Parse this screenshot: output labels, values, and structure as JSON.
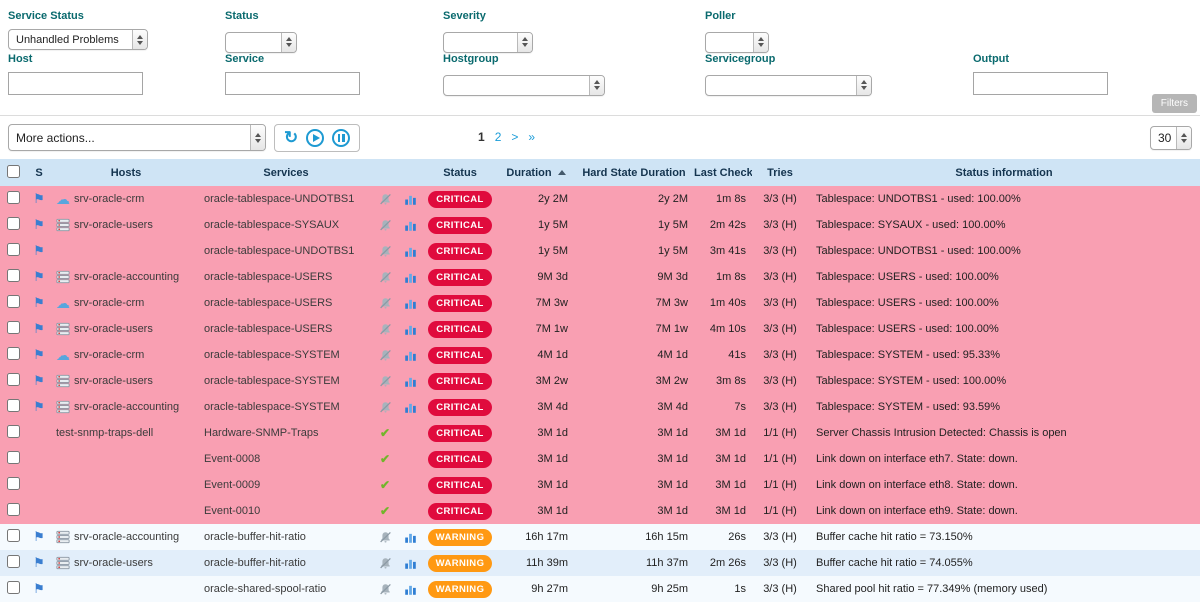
{
  "filters": {
    "row1": [
      {
        "label": "Service Status",
        "value": "Unhandled Problems"
      },
      {
        "label": "Status",
        "value": ""
      },
      {
        "label": "Severity",
        "value": ""
      },
      {
        "label": "Poller",
        "value": ""
      }
    ],
    "row2": [
      {
        "label": "Host",
        "value": ""
      },
      {
        "label": "Service",
        "value": ""
      },
      {
        "label": "Hostgroup",
        "value": ""
      },
      {
        "label": "Servicegroup",
        "value": ""
      },
      {
        "label": "Output",
        "value": ""
      }
    ],
    "filters_button": "Filters"
  },
  "toolbar": {
    "more_actions_value": "More actions...",
    "page_size_value": "30",
    "pagination": {
      "current": "1",
      "page2": "2",
      "next": ">",
      "last": "»"
    }
  },
  "table": {
    "headers": {
      "s": "S",
      "hosts": "Hosts",
      "services": "Services",
      "status": "Status",
      "duration": "Duration",
      "hard_state_duration": "Hard State Duration",
      "last_check": "Last Check",
      "tries": "Tries",
      "status_information": "Status information"
    },
    "rows": [
      {
        "checkbox": true,
        "flag": true,
        "host": "srv-oracle-crm",
        "host_icon": "cloud",
        "service": "oracle-tablespace-UNDOTBS1",
        "icons": [
          "bell-mute",
          "chart"
        ],
        "status": "CRITICAL",
        "duration": "2y 2M",
        "hard_state_duration": "2y 2M",
        "last_check": "1m 8s",
        "tries": "3/3 (H)",
        "info": "Tablespace: UNDOTBS1 - used: 100.00%",
        "row_class": "critical"
      },
      {
        "checkbox": true,
        "flag": true,
        "host": "srv-oracle-users",
        "host_icon": "server",
        "service": "oracle-tablespace-SYSAUX",
        "icons": [
          "bell-mute",
          "chart"
        ],
        "status": "CRITICAL",
        "duration": "1y 5M",
        "hard_state_duration": "1y 5M",
        "last_check": "2m 42s",
        "tries": "3/3 (H)",
        "info": "Tablespace: SYSAUX - used: 100.00%",
        "row_class": "critical"
      },
      {
        "checkbox": true,
        "flag": true,
        "host": "",
        "host_icon": "",
        "service": "oracle-tablespace-UNDOTBS1",
        "icons": [
          "bell-mute",
          "chart"
        ],
        "status": "CRITICAL",
        "duration": "1y 5M",
        "hard_state_duration": "1y 5M",
        "last_check": "3m 41s",
        "tries": "3/3 (H)",
        "info": "Tablespace: UNDOTBS1 - used: 100.00%",
        "row_class": "critical"
      },
      {
        "checkbox": true,
        "flag": true,
        "host": "srv-oracle-accounting",
        "host_icon": "server",
        "service": "oracle-tablespace-USERS",
        "icons": [
          "bell-mute",
          "chart"
        ],
        "status": "CRITICAL",
        "duration": "9M 3d",
        "hard_state_duration": "9M 3d",
        "last_check": "1m 8s",
        "tries": "3/3 (H)",
        "info": "Tablespace: USERS - used: 100.00%",
        "row_class": "critical"
      },
      {
        "checkbox": true,
        "flag": true,
        "host": "srv-oracle-crm",
        "host_icon": "cloud",
        "service": "oracle-tablespace-USERS",
        "icons": [
          "bell-mute",
          "chart"
        ],
        "status": "CRITICAL",
        "duration": "7M 3w",
        "hard_state_duration": "7M 3w",
        "last_check": "1m 40s",
        "tries": "3/3 (H)",
        "info": "Tablespace: USERS - used: 100.00%",
        "row_class": "critical"
      },
      {
        "checkbox": true,
        "flag": true,
        "host": "srv-oracle-users",
        "host_icon": "server",
        "service": "oracle-tablespace-USERS",
        "icons": [
          "bell-mute",
          "chart"
        ],
        "status": "CRITICAL",
        "duration": "7M 1w",
        "hard_state_duration": "7M 1w",
        "last_check": "4m 10s",
        "tries": "3/3 (H)",
        "info": "Tablespace: USERS - used: 100.00%",
        "row_class": "critical"
      },
      {
        "checkbox": true,
        "flag": true,
        "host": "srv-oracle-crm",
        "host_icon": "cloud",
        "service": "oracle-tablespace-SYSTEM",
        "icons": [
          "bell-mute",
          "chart"
        ],
        "status": "CRITICAL",
        "duration": "4M 1d",
        "hard_state_duration": "4M 1d",
        "last_check": "41s",
        "tries": "3/3 (H)",
        "info": "Tablespace: SYSTEM - used: 95.33%",
        "row_class": "critical"
      },
      {
        "checkbox": true,
        "flag": true,
        "host": "srv-oracle-users",
        "host_icon": "server",
        "service": "oracle-tablespace-SYSTEM",
        "icons": [
          "bell-mute",
          "chart"
        ],
        "status": "CRITICAL",
        "duration": "3M 2w",
        "hard_state_duration": "3M 2w",
        "last_check": "3m 8s",
        "tries": "3/3 (H)",
        "info": "Tablespace: SYSTEM - used: 100.00%",
        "row_class": "critical"
      },
      {
        "checkbox": true,
        "flag": true,
        "host": "srv-oracle-accounting",
        "host_icon": "server",
        "service": "oracle-tablespace-SYSTEM",
        "icons": [
          "bell-mute",
          "chart"
        ],
        "status": "CRITICAL",
        "duration": "3M 4d",
        "hard_state_duration": "3M 4d",
        "last_check": "7s",
        "tries": "3/3 (H)",
        "info": "Tablespace: SYSTEM - used: 93.59%",
        "row_class": "critical"
      },
      {
        "checkbox": true,
        "flag": false,
        "host": "test-snmp-traps-dell",
        "host_icon": "",
        "service": "Hardware-SNMP-Traps",
        "icons": [
          "check"
        ],
        "status": "CRITICAL",
        "duration": "3M 1d",
        "hard_state_duration": "3M 1d",
        "last_check": "3M 1d",
        "tries": "1/1 (H)",
        "info": "Server Chassis Intrusion Detected: Chassis is open",
        "row_class": "critical"
      },
      {
        "checkbox": true,
        "flag": false,
        "host": "",
        "host_icon": "",
        "service": "Event-0008",
        "icons": [
          "check"
        ],
        "status": "CRITICAL",
        "duration": "3M 1d",
        "hard_state_duration": "3M 1d",
        "last_check": "3M 1d",
        "tries": "1/1 (H)",
        "info": "Link down on interface eth7. State: down.",
        "row_class": "critical"
      },
      {
        "checkbox": true,
        "flag": false,
        "host": "",
        "host_icon": "",
        "service": "Event-0009",
        "icons": [
          "check"
        ],
        "status": "CRITICAL",
        "duration": "3M 1d",
        "hard_state_duration": "3M 1d",
        "last_check": "3M 1d",
        "tries": "1/1 (H)",
        "info": "Link down on interface eth8. State: down.",
        "row_class": "critical"
      },
      {
        "checkbox": true,
        "flag": false,
        "host": "",
        "host_icon": "",
        "service": "Event-0010",
        "icons": [
          "check"
        ],
        "status": "CRITICAL",
        "duration": "3M 1d",
        "hard_state_duration": "3M 1d",
        "last_check": "3M 1d",
        "tries": "1/1 (H)",
        "info": "Link down on interface eth9. State: down.",
        "row_class": "critical"
      },
      {
        "checkbox": true,
        "flag": true,
        "host": "srv-oracle-accounting",
        "host_icon": "server",
        "service": "oracle-buffer-hit-ratio",
        "icons": [
          "bell-mute",
          "chart"
        ],
        "status": "WARNING",
        "duration": "16h 17m",
        "hard_state_duration": "16h 15m",
        "last_check": "26s",
        "tries": "3/3 (H)",
        "info": "Buffer cache hit ratio = 73.150%",
        "row_class": "warn-a"
      },
      {
        "checkbox": true,
        "flag": true,
        "host": "srv-oracle-users",
        "host_icon": "server",
        "service": "oracle-buffer-hit-ratio",
        "icons": [
          "bell-mute",
          "chart"
        ],
        "status": "WARNING",
        "duration": "11h 39m",
        "hard_state_duration": "11h 37m",
        "last_check": "2m 26s",
        "tries": "3/3 (H)",
        "info": "Buffer cache hit ratio = 74.055%",
        "row_class": "warn-b"
      },
      {
        "checkbox": true,
        "flag": true,
        "host": "",
        "host_icon": "",
        "service": "oracle-shared-spool-ratio",
        "icons": [
          "bell-mute",
          "chart"
        ],
        "status": "WARNING",
        "duration": "9h 27m",
        "hard_state_duration": "9h 25m",
        "last_check": "1s",
        "tries": "3/3 (H)",
        "info": "Shared pool hit ratio = 77.349% (memory used)",
        "row_class": "warn-a"
      }
    ]
  },
  "colors": {
    "critical_badge": "#e00b3d",
    "warning_badge": "#ff9913",
    "critical_row": "#f99fb2",
    "header_row": "#cfe4f5",
    "label_teal": "#0a6a6e",
    "link_blue": "#1a9cd8"
  }
}
